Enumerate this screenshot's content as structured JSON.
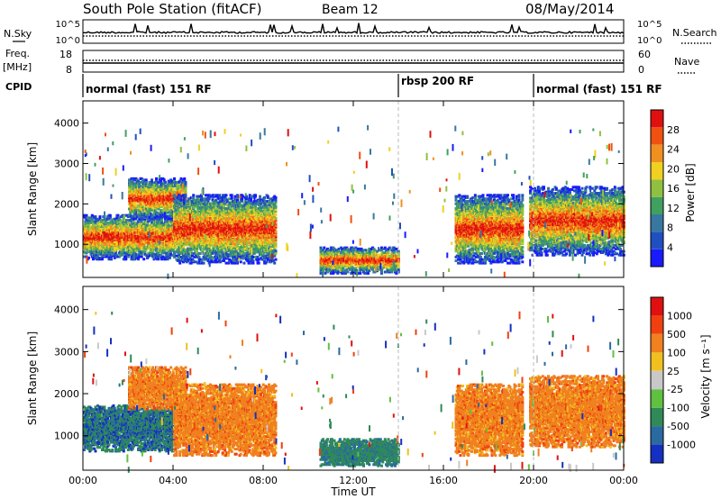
{
  "header": {
    "station": "South Pole Station (fitACF)",
    "beam": "Beam 12",
    "date": "08/May/2014"
  },
  "summary_panels": {
    "nsky_label": "N.Sky",
    "nsky_ticks": [
      "10^5",
      "10^0"
    ],
    "nsearch_label": "N.Search",
    "nsearch_ticks": [
      "10^5",
      "10^0"
    ],
    "freq_label": "Freq.",
    "freq_unit": "[MHz]",
    "freq_ticks": [
      "18",
      "8"
    ],
    "nave_label": "Nave",
    "nave_ticks": [
      "60",
      "0"
    ],
    "cpid_label": "CPID",
    "cpid_segments": [
      {
        "label": "normal (fast) 151 RF",
        "start_hr": 0,
        "end_hr": 14
      },
      {
        "label": "rbsp 200 RF",
        "start_hr": 14,
        "end_hr": 20
      },
      {
        "label": "normal (fast) 151 RF",
        "start_hr": 20,
        "end_hr": 24
      }
    ]
  },
  "panels": {
    "power": {
      "ylabel": "Slant Range [km]",
      "yticks": [
        "1000",
        "2000",
        "3000",
        "4000"
      ],
      "colorbar_label": "Power [dB]",
      "colorbar_ticks": [
        "4",
        "8",
        "12",
        "16",
        "20",
        "24",
        "28"
      ],
      "colors": [
        "#1a1aff",
        "#2050c0",
        "#3878a0",
        "#40a060",
        "#90c040",
        "#f0d020",
        "#f09020",
        "#f05010",
        "#e01010"
      ]
    },
    "velocity": {
      "ylabel": "Slant Range [km]",
      "yticks": [
        "1000",
        "2000",
        "3000",
        "4000"
      ],
      "colorbar_label": "Velocity [m s⁻¹]",
      "colorbar_ticks": [
        "1000",
        "500",
        "100",
        "25",
        "-25",
        "-100",
        "-500",
        "-1000"
      ],
      "colors": [
        "#1530c0",
        "#2a6aa0",
        "#2f8a58",
        "#60c040",
        "#c8c8c8",
        "#f0c020",
        "#f08020",
        "#f04010",
        "#e01010"
      ]
    }
  },
  "xaxis": {
    "label": "Time UT",
    "ticks": [
      "00:00",
      "04:00",
      "08:00",
      "12:00",
      "16:00",
      "20:00",
      "00:00"
    ]
  },
  "chart_data": {
    "type": "heatmap",
    "title": "South Pole Station (fitACF)",
    "x_range_hours": [
      0,
      24
    ],
    "y_range_km": [
      180,
      4550
    ],
    "echo_regions": [
      {
        "t0": 0.0,
        "t1": 4.0,
        "r0": 600,
        "r1": 1700
      },
      {
        "t0": 2.0,
        "t1": 4.5,
        "r0": 1600,
        "r1": 2600
      },
      {
        "t0": 4.0,
        "t1": 8.5,
        "r0": 500,
        "r1": 2200
      },
      {
        "t0": 10.5,
        "t1": 14.0,
        "r0": 250,
        "r1": 900
      },
      {
        "t0": 16.5,
        "t1": 19.5,
        "r0": 500,
        "r1": 2200
      },
      {
        "t0": 19.8,
        "t1": 24.0,
        "r0": 700,
        "r1": 2400
      }
    ]
  }
}
